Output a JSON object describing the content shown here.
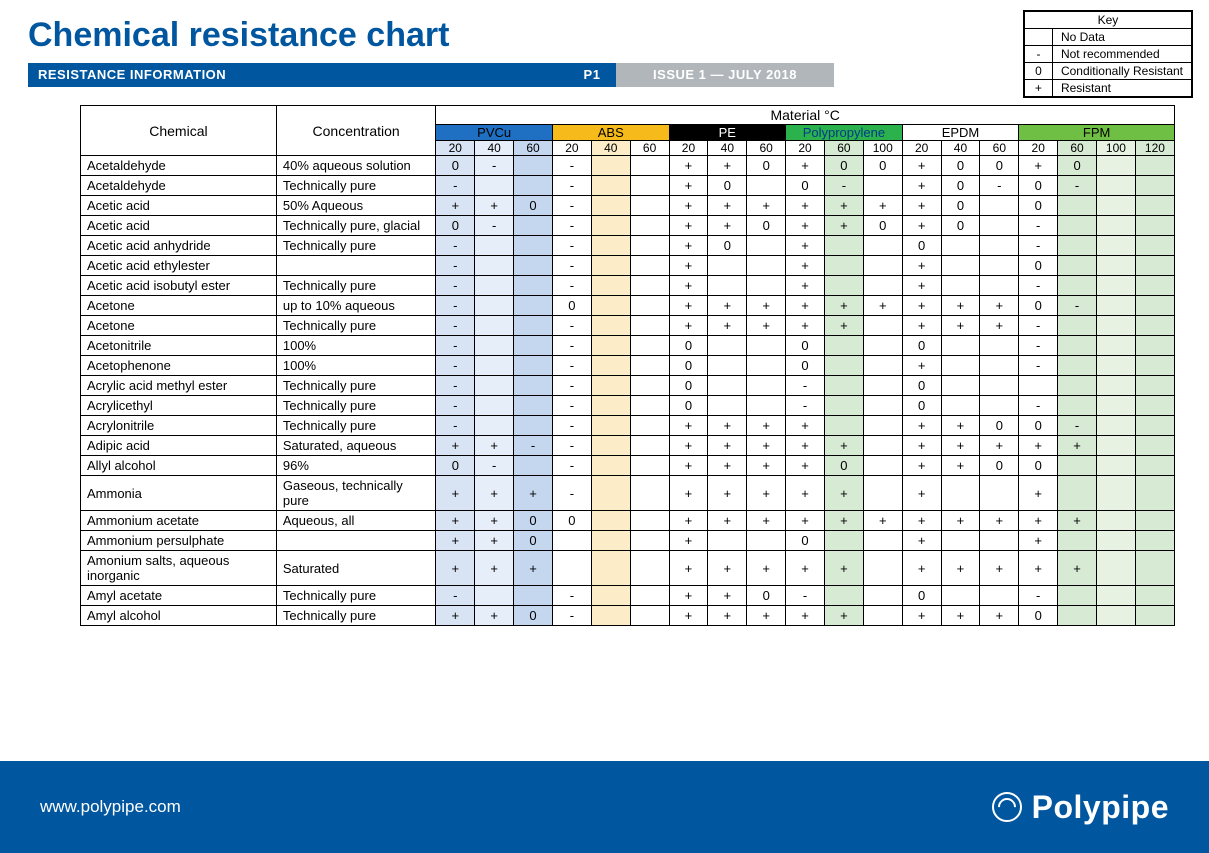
{
  "title": "Chemical resistance chart",
  "ribbon": {
    "section": "RESISTANCE INFORMATION",
    "page": "P1",
    "issue": "ISSUE 1 — JULY 2018"
  },
  "key": {
    "heading": "Key",
    "rows": [
      {
        "sym": "",
        "label": "No Data"
      },
      {
        "sym": "-",
        "label": "Not recommended"
      },
      {
        "sym": "0",
        "label": "Conditionally Resistant"
      },
      {
        "sym": "+",
        "label": "Resistant"
      }
    ]
  },
  "materials_header": "Material °C",
  "columns": {
    "chemical_label": "Chemical",
    "concentration_label": "Concentration"
  },
  "materials": [
    {
      "name": "PVCu",
      "temps": [
        "20",
        "40",
        "60"
      ],
      "header_bg": "#1f6fc2",
      "header_fg": "#000000",
      "tints": [
        "tint-pvcu-1",
        "tint-pvcu-2",
        "tint-pvcu-3"
      ]
    },
    {
      "name": "ABS",
      "temps": [
        "20",
        "40",
        "60"
      ],
      "header_bg": "#f6bb1b",
      "header_fg": "#000000",
      "tints": [
        "tint-abs-1",
        "tint-abs-2",
        "tint-abs-3"
      ]
    },
    {
      "name": "PE",
      "temps": [
        "20",
        "40",
        "60"
      ],
      "header_bg": "#000000",
      "header_fg": "#ffffff",
      "tints": [
        "tint-pe",
        "tint-pe",
        "tint-pe"
      ]
    },
    {
      "name": "Polypropylene",
      "temps": [
        "20",
        "60",
        "100"
      ],
      "header_bg": "#2bb24c",
      "header_fg": "#003a8a",
      "tints": [
        "tint-pp-1",
        "tint-pp-2",
        "tint-pp-3"
      ]
    },
    {
      "name": "EPDM",
      "temps": [
        "20",
        "40",
        "60"
      ],
      "header_bg": "#ffffff",
      "header_fg": "#000000",
      "tints": [
        "tint-epdm",
        "tint-epdm",
        "tint-epdm"
      ]
    },
    {
      "name": "FPM",
      "temps": [
        "20",
        "60",
        "100",
        "120"
      ],
      "header_bg": "#6fbf44",
      "header_fg": "#000000",
      "tints": [
        "tint-fpm-1",
        "tint-fpm-2",
        "tint-fpm-3",
        "tint-fpm-4"
      ]
    }
  ],
  "rows": [
    {
      "chemical": "Acetaldehyde",
      "concentration": "40% aqueous solution",
      "cells": [
        "0",
        "-",
        "",
        "-",
        "",
        "",
        "+",
        "+",
        "0",
        "+",
        "0",
        "0",
        "+",
        "0",
        "0",
        "+",
        "0",
        "",
        ""
      ]
    },
    {
      "chemical": "Acetaldehyde",
      "concentration": "Technically pure",
      "cells": [
        "-",
        "",
        "",
        "-",
        "",
        "",
        "+",
        "0",
        "",
        "0",
        "-",
        "",
        "+",
        "0",
        "-",
        "0",
        "-",
        "",
        ""
      ]
    },
    {
      "chemical": "Acetic acid",
      "concentration": "50% Aqueous",
      "cells": [
        "+",
        "+",
        "0",
        "-",
        "",
        "",
        "+",
        "+",
        "+",
        "+",
        "+",
        "+",
        "+",
        "0",
        "",
        "0",
        "",
        "",
        ""
      ]
    },
    {
      "chemical": "Acetic acid",
      "concentration": "Technically pure, glacial",
      "cells": [
        "0",
        "-",
        "",
        "-",
        "",
        "",
        "+",
        "+",
        "0",
        "+",
        "+",
        "0",
        "+",
        "0",
        "",
        "-",
        "",
        "",
        ""
      ]
    },
    {
      "chemical": "Acetic acid anhydride",
      "concentration": "Technically pure",
      "cells": [
        "-",
        "",
        "",
        "-",
        "",
        "",
        "+",
        "0",
        "",
        "+",
        "",
        "",
        "0",
        "",
        "",
        "-",
        "",
        "",
        ""
      ]
    },
    {
      "chemical": "Acetic acid ethylester",
      "concentration": "",
      "cells": [
        "-",
        "",
        "",
        "-",
        "",
        "",
        "+",
        "",
        "",
        "+",
        "",
        "",
        "+",
        "",
        "",
        "0",
        "",
        "",
        ""
      ]
    },
    {
      "chemical": "Acetic acid isobutyl ester",
      "concentration": "Technically pure",
      "cells": [
        "-",
        "",
        "",
        "-",
        "",
        "",
        "+",
        "",
        "",
        "+",
        "",
        "",
        "+",
        "",
        "",
        "-",
        "",
        "",
        ""
      ]
    },
    {
      "chemical": "Acetone",
      "concentration": "up to 10% aqueous",
      "cells": [
        "-",
        "",
        "",
        "0",
        "",
        "",
        "+",
        "+",
        "+",
        "+",
        "+",
        "+",
        "+",
        "+",
        "+",
        "0",
        "-",
        "",
        ""
      ]
    },
    {
      "chemical": "Acetone",
      "concentration": "Technically pure",
      "cells": [
        "-",
        "",
        "",
        "-",
        "",
        "",
        "+",
        "+",
        "+",
        "+",
        "+",
        "",
        "+",
        "+",
        "+",
        "-",
        "",
        "",
        ""
      ]
    },
    {
      "chemical": "Acetonitrile",
      "concentration": "100%",
      "cells": [
        "-",
        "",
        "",
        "-",
        "",
        "",
        "0",
        "",
        "",
        "0",
        "",
        "",
        "0",
        "",
        "",
        "-",
        "",
        "",
        ""
      ]
    },
    {
      "chemical": "Acetophenone",
      "concentration": "100%",
      "cells": [
        "-",
        "",
        "",
        "-",
        "",
        "",
        "0",
        "",
        "",
        "0",
        "",
        "",
        "+",
        "",
        "",
        "-",
        "",
        "",
        ""
      ]
    },
    {
      "chemical": "Acrylic acid methyl ester",
      "concentration": "Technically pure",
      "cells": [
        "-",
        "",
        "",
        "-",
        "",
        "",
        "0",
        "",
        "",
        "-",
        "",
        "",
        "0",
        "",
        "",
        "",
        "",
        "",
        ""
      ]
    },
    {
      "chemical": "Acrylicethyl",
      "concentration": "Technically pure",
      "cells": [
        "-",
        "",
        "",
        "-",
        "",
        "",
        "0",
        "",
        "",
        "-",
        "",
        "",
        "0",
        "",
        "",
        "-",
        "",
        "",
        ""
      ]
    },
    {
      "chemical": "Acrylonitrile",
      "concentration": "Technically pure",
      "cells": [
        "-",
        "",
        "",
        "-",
        "",
        "",
        "+",
        "+",
        "+",
        "+",
        "",
        "",
        "+",
        "+",
        "0",
        "0",
        "-",
        "",
        ""
      ]
    },
    {
      "chemical": "Adipic acid",
      "concentration": "Saturated, aqueous",
      "cells": [
        "+",
        "+",
        "-",
        "-",
        "",
        "",
        "+",
        "+",
        "+",
        "+",
        "+",
        "",
        "+",
        "+",
        "+",
        "+",
        "+",
        "",
        ""
      ]
    },
    {
      "chemical": "Allyl alcohol",
      "concentration": "96%",
      "cells": [
        "0",
        "-",
        "",
        "-",
        "",
        "",
        "+",
        "+",
        "+",
        "+",
        "0",
        "",
        "+",
        "+",
        "0",
        "0",
        "",
        "",
        ""
      ]
    },
    {
      "chemical": "Ammonia",
      "concentration": "Gaseous, technically pure",
      "cells": [
        "+",
        "+",
        "+",
        "-",
        "",
        "",
        "+",
        "+",
        "+",
        "+",
        "+",
        "",
        "+",
        "",
        "",
        "+",
        "",
        "",
        ""
      ]
    },
    {
      "chemical": "Ammonium acetate",
      "concentration": "Aqueous, all",
      "cells": [
        "+",
        "+",
        "0",
        "0",
        "",
        "",
        "+",
        "+",
        "+",
        "+",
        "+",
        "+",
        "+",
        "+",
        "+",
        "+",
        "+",
        "",
        ""
      ]
    },
    {
      "chemical": "Ammonium persulphate",
      "concentration": "",
      "cells": [
        "+",
        "+",
        "0",
        "",
        "",
        "",
        "+",
        "",
        "",
        "0",
        "",
        "",
        "+",
        "",
        "",
        "+",
        "",
        "",
        ""
      ]
    },
    {
      "chemical": "Amonium salts, aqueous inorganic",
      "concentration": "Saturated",
      "cells": [
        "+",
        "+",
        "+",
        "",
        "",
        "",
        "+",
        "+",
        "+",
        "+",
        "+",
        "",
        "+",
        "+",
        "+",
        "+",
        "+",
        "",
        ""
      ]
    },
    {
      "chemical": "Amyl acetate",
      "concentration": "Technically pure",
      "cells": [
        "-",
        "",
        "",
        "-",
        "",
        "",
        "+",
        "+",
        "0",
        "-",
        "",
        "",
        "0",
        "",
        "",
        "-",
        "",
        "",
        ""
      ]
    },
    {
      "chemical": "Amyl alcohol",
      "concentration": "Technically pure",
      "cells": [
        "+",
        "+",
        "0",
        "-",
        "",
        "",
        "+",
        "+",
        "+",
        "+",
        "+",
        "",
        "+",
        "+",
        "+",
        "0",
        "",
        "",
        ""
      ]
    }
  ],
  "footer": {
    "url": "www.polypipe.com",
    "brand": "Polypipe"
  },
  "colors": {
    "brand_blue": "#00569f",
    "ribbon_grey": "#b1b6bb"
  }
}
